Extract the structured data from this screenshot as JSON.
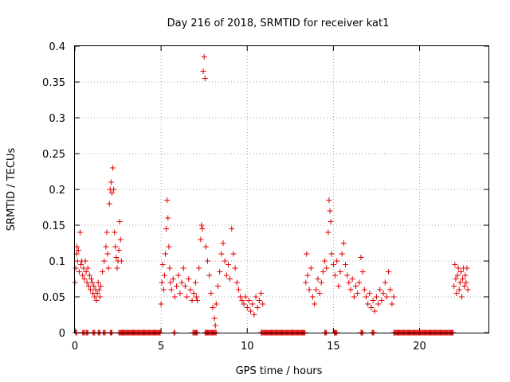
{
  "chart_data": {
    "type": "scatter",
    "title": "Day 216 of 2018, SRMTID for receiver kat1",
    "xlabel": "GPS time / hours",
    "ylabel": "SRMTID / TECUs",
    "xlim": [
      0,
      24
    ],
    "ylim": [
      0,
      0.4
    ],
    "xticks": [
      "0",
      "5",
      "10",
      "15",
      "20"
    ],
    "yticks": [
      "0",
      "0.05",
      "0.1",
      "0.15",
      "0.2",
      "0.25",
      "0.3",
      "0.35",
      "0.4"
    ],
    "grid": true,
    "marker": "+",
    "color": "#e00000",
    "series": [
      {
        "name": "SRMTID",
        "points": [
          [
            0.0,
            0.07
          ],
          [
            0.05,
            0.09
          ],
          [
            0.1,
            0.11
          ],
          [
            0.12,
            0.12
          ],
          [
            0.15,
            0.1
          ],
          [
            0.2,
            0.115
          ],
          [
            0.25,
            0.085
          ],
          [
            0.3,
            0.14
          ],
          [
            0.35,
            0.095
          ],
          [
            0.4,
            0.1
          ],
          [
            0.45,
            0.08
          ],
          [
            0.5,
            0.09
          ],
          [
            0.55,
            0.075
          ],
          [
            0.6,
            0.1
          ],
          [
            0.65,
            0.085
          ],
          [
            0.7,
            0.07
          ],
          [
            0.75,
            0.09
          ],
          [
            0.8,
            0.065
          ],
          [
            0.85,
            0.08
          ],
          [
            0.9,
            0.06
          ],
          [
            0.95,
            0.075
          ],
          [
            1.0,
            0.07
          ],
          [
            1.05,
            0.055
          ],
          [
            1.1,
            0.065
          ],
          [
            1.15,
            0.05
          ],
          [
            1.2,
            0.06
          ],
          [
            1.25,
            0.045
          ],
          [
            1.3,
            0.055
          ],
          [
            1.35,
            0.07
          ],
          [
            1.4,
            0.06
          ],
          [
            1.45,
            0.05
          ],
          [
            1.5,
            0.065
          ],
          [
            1.6,
            0.085
          ],
          [
            1.7,
            0.1
          ],
          [
            1.8,
            0.12
          ],
          [
            1.85,
            0.14
          ],
          [
            1.9,
            0.11
          ],
          [
            1.95,
            0.09
          ],
          [
            2.0,
            0.18
          ],
          [
            2.05,
            0.2
          ],
          [
            2.1,
            0.21
          ],
          [
            2.15,
            0.195
          ],
          [
            2.2,
            0.23
          ],
          [
            2.25,
            0.2
          ],
          [
            2.3,
            0.14
          ],
          [
            2.35,
            0.12
          ],
          [
            2.4,
            0.105
          ],
          [
            2.45,
            0.09
          ],
          [
            2.5,
            0.1
          ],
          [
            2.55,
            0.115
          ],
          [
            2.6,
            0.155
          ],
          [
            2.65,
            0.13
          ],
          [
            2.7,
            0.1
          ],
          [
            5.0,
            0.04
          ],
          [
            5.05,
            0.07
          ],
          [
            5.1,
            0.095
          ],
          [
            5.15,
            0.06
          ],
          [
            5.2,
            0.08
          ],
          [
            5.25,
            0.11
          ],
          [
            5.3,
            0.145
          ],
          [
            5.35,
            0.185
          ],
          [
            5.4,
            0.16
          ],
          [
            5.45,
            0.12
          ],
          [
            5.5,
            0.09
          ],
          [
            5.55,
            0.07
          ],
          [
            5.6,
            0.06
          ],
          [
            5.7,
            0.075
          ],
          [
            5.8,
            0.05
          ],
          [
            5.9,
            0.065
          ],
          [
            6.0,
            0.08
          ],
          [
            6.1,
            0.055
          ],
          [
            6.2,
            0.07
          ],
          [
            6.3,
            0.09
          ],
          [
            6.4,
            0.065
          ],
          [
            6.5,
            0.05
          ],
          [
            6.6,
            0.075
          ],
          [
            6.7,
            0.06
          ],
          [
            6.8,
            0.045
          ],
          [
            6.9,
            0.055
          ],
          [
            7.0,
            0.07
          ],
          [
            7.05,
            0.05
          ],
          [
            7.1,
            0.045
          ],
          [
            7.2,
            0.09
          ],
          [
            7.3,
            0.13
          ],
          [
            7.35,
            0.15
          ],
          [
            7.4,
            0.145
          ],
          [
            7.45,
            0.365
          ],
          [
            7.5,
            0.385
          ],
          [
            7.55,
            0.355
          ],
          [
            7.6,
            0.12
          ],
          [
            7.7,
            0.1
          ],
          [
            7.8,
            0.08
          ],
          [
            7.9,
            0.055
          ],
          [
            8.0,
            0.035
          ],
          [
            8.1,
            0.02
          ],
          [
            8.15,
            0.01
          ],
          [
            8.2,
            0.04
          ],
          [
            8.3,
            0.065
          ],
          [
            8.4,
            0.085
          ],
          [
            8.5,
            0.11
          ],
          [
            8.6,
            0.125
          ],
          [
            8.7,
            0.1
          ],
          [
            8.8,
            0.08
          ],
          [
            8.9,
            0.095
          ],
          [
            9.0,
            0.075
          ],
          [
            9.1,
            0.145
          ],
          [
            9.2,
            0.11
          ],
          [
            9.3,
            0.09
          ],
          [
            9.4,
            0.07
          ],
          [
            9.5,
            0.06
          ],
          [
            9.6,
            0.05
          ],
          [
            9.7,
            0.045
          ],
          [
            9.8,
            0.04
          ],
          [
            9.9,
            0.05
          ],
          [
            10.0,
            0.035
          ],
          [
            10.1,
            0.045
          ],
          [
            10.2,
            0.03
          ],
          [
            10.3,
            0.04
          ],
          [
            10.4,
            0.025
          ],
          [
            10.5,
            0.05
          ],
          [
            10.6,
            0.035
          ],
          [
            10.7,
            0.045
          ],
          [
            10.8,
            0.055
          ],
          [
            10.9,
            0.04
          ],
          [
            13.4,
            0.07
          ],
          [
            13.45,
            0.11
          ],
          [
            13.5,
            0.08
          ],
          [
            13.6,
            0.06
          ],
          [
            13.7,
            0.09
          ],
          [
            13.8,
            0.05
          ],
          [
            13.9,
            0.04
          ],
          [
            14.0,
            0.06
          ],
          [
            14.1,
            0.075
          ],
          [
            14.2,
            0.055
          ],
          [
            14.3,
            0.07
          ],
          [
            14.4,
            0.085
          ],
          [
            14.5,
            0.1
          ],
          [
            14.6,
            0.09
          ],
          [
            14.7,
            0.14
          ],
          [
            14.75,
            0.185
          ],
          [
            14.8,
            0.17
          ],
          [
            14.85,
            0.155
          ],
          [
            14.9,
            0.11
          ],
          [
            15.0,
            0.095
          ],
          [
            15.1,
            0.08
          ],
          [
            15.2,
            0.1
          ],
          [
            15.3,
            0.065
          ],
          [
            15.4,
            0.085
          ],
          [
            15.5,
            0.11
          ],
          [
            15.6,
            0.125
          ],
          [
            15.7,
            0.095
          ],
          [
            15.8,
            0.08
          ],
          [
            15.9,
            0.07
          ],
          [
            16.0,
            0.06
          ],
          [
            16.1,
            0.075
          ],
          [
            16.2,
            0.05
          ],
          [
            16.3,
            0.065
          ],
          [
            16.4,
            0.055
          ],
          [
            16.5,
            0.07
          ],
          [
            16.6,
            0.105
          ],
          [
            16.7,
            0.085
          ],
          [
            16.8,
            0.06
          ],
          [
            16.9,
            0.05
          ],
          [
            17.0,
            0.04
          ],
          [
            17.1,
            0.055
          ],
          [
            17.2,
            0.035
          ],
          [
            17.3,
            0.045
          ],
          [
            17.4,
            0.03
          ],
          [
            17.5,
            0.05
          ],
          [
            17.6,
            0.04
          ],
          [
            17.7,
            0.06
          ],
          [
            17.8,
            0.045
          ],
          [
            17.9,
            0.055
          ],
          [
            18.0,
            0.07
          ],
          [
            18.1,
            0.05
          ],
          [
            18.2,
            0.085
          ],
          [
            18.3,
            0.06
          ],
          [
            18.4,
            0.04
          ],
          [
            18.5,
            0.05
          ],
          [
            22.0,
            0.065
          ],
          [
            22.05,
            0.095
          ],
          [
            22.1,
            0.075
          ],
          [
            22.15,
            0.055
          ],
          [
            22.2,
            0.08
          ],
          [
            22.25,
            0.09
          ],
          [
            22.3,
            0.06
          ],
          [
            22.35,
            0.07
          ],
          [
            22.4,
            0.085
          ],
          [
            22.45,
            0.05
          ],
          [
            22.5,
            0.075
          ],
          [
            22.55,
            0.09
          ],
          [
            22.6,
            0.065
          ],
          [
            22.65,
            0.08
          ],
          [
            22.7,
            0.07
          ],
          [
            22.75,
            0.09
          ],
          [
            22.8,
            0.06
          ]
        ],
        "zero_ranges": [
          [
            0.05,
            0.1
          ],
          [
            0.45,
            0.55
          ],
          [
            0.65,
            0.75
          ],
          [
            1.05,
            1.15
          ],
          [
            1.35,
            1.45
          ],
          [
            1.65,
            1.75
          ],
          [
            2.05,
            2.15
          ],
          [
            2.55,
            4.95
          ],
          [
            5.75,
            5.8
          ],
          [
            6.85,
            7.1
          ],
          [
            7.55,
            8.2
          ],
          [
            10.8,
            13.35
          ],
          [
            14.5,
            14.6
          ],
          [
            15.05,
            15.2
          ],
          [
            16.6,
            16.7
          ],
          [
            17.25,
            17.35
          ],
          [
            18.5,
            21.95
          ]
        ]
      }
    ]
  }
}
